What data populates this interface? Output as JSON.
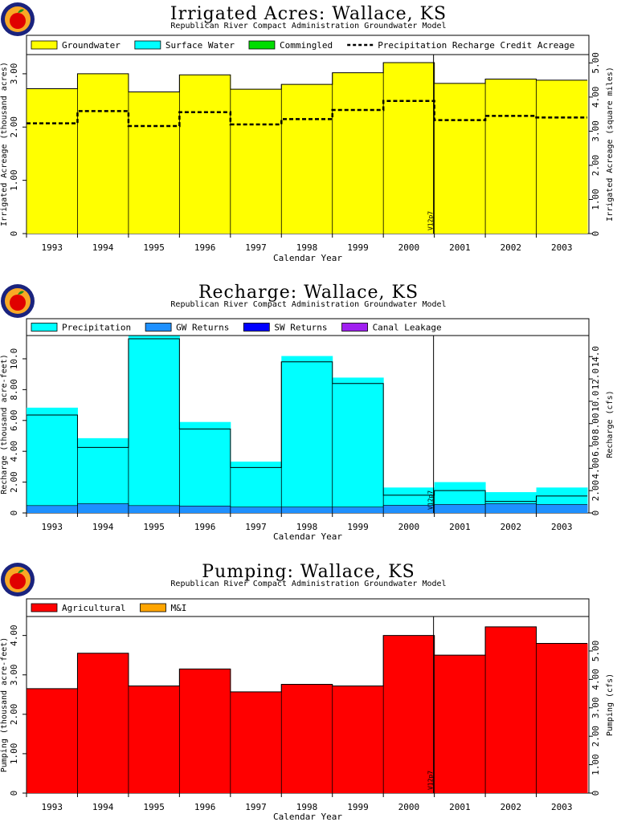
{
  "page": {
    "subtitle": "Republican River Compact Administration Groundwater Model"
  },
  "chart_data": [
    {
      "type": "area",
      "title": "Irrigated Acres: Wallace, KS",
      "subtitle": "Republican River Compact Administration Groundwater Model",
      "xlabel": "Calendar Year",
      "ylabel": "Irrigated Acreage (thousand acres)",
      "y2label": "Irrigated Acreage (square miles)",
      "categories": [
        "1993",
        "1994",
        "1995",
        "1996",
        "1997",
        "1998",
        "1999",
        "2000",
        "2001",
        "2002",
        "2003"
      ],
      "ylim": [
        0,
        3.3
      ],
      "yticks": [
        "0",
        "1.00",
        "2.00",
        "3.00"
      ],
      "y2lim": [
        0,
        5.15
      ],
      "y2ticks": [
        "0",
        "1.00",
        "2.00",
        "3.00",
        "4.00",
        "5.00"
      ],
      "series": [
        {
          "name": "Groundwater",
          "color": "#ffff00",
          "style": "fill",
          "values": [
            2.72,
            3.0,
            2.66,
            2.98,
            2.71,
            2.8,
            3.02,
            3.21,
            2.82,
            2.9,
            2.88
          ]
        },
        {
          "name": "Surface Water",
          "color": "#00ffff",
          "style": "fill",
          "values": [
            0,
            0,
            0,
            0,
            0,
            0,
            0,
            0,
            0,
            0,
            0
          ]
        },
        {
          "name": "Commingled",
          "color": "#00dd00",
          "style": "fill",
          "values": [
            0,
            0,
            0,
            0,
            0,
            0,
            0,
            0,
            0,
            0,
            0
          ]
        },
        {
          "name": "Precipitation Recharge Credit Acreage",
          "color": "#000000",
          "style": "dashed",
          "values": [
            2.07,
            2.3,
            2.02,
            2.28,
            2.05,
            2.15,
            2.32,
            2.49,
            2.13,
            2.21,
            2.18
          ]
        }
      ],
      "annotation": {
        "label": "V12p7",
        "x_index": 8
      },
      "grid": false,
      "legend": "top"
    },
    {
      "type": "area",
      "title": "Recharge: Wallace, KS",
      "subtitle": "Republican River Compact Administration Groundwater Model",
      "xlabel": "Calendar Year",
      "ylabel": "Recharge (thousand acre-feet)",
      "y2label": "Recharge (cfs)",
      "categories": [
        "1993",
        "1994",
        "1995",
        "1996",
        "1997",
        "1998",
        "1999",
        "2000",
        "2001",
        "2002",
        "2003"
      ],
      "ylim": [
        0,
        11.3
      ],
      "yticks": [
        "0",
        "2.00",
        "4.00",
        "6.00",
        "8.00",
        "10.0"
      ],
      "y2lim": [
        0,
        15.6
      ],
      "y2ticks": [
        "0",
        "2.00",
        "4.00",
        "6.00",
        "8.00",
        "10.0",
        "12.0",
        "14.0"
      ],
      "series": [
        {
          "name": "Precipitation",
          "color": "#00ffff",
          "style": "fill",
          "values": [
            6.35,
            4.25,
            11.3,
            5.45,
            2.95,
            9.8,
            8.4,
            1.15,
            1.45,
            0.75,
            1.1
          ]
        },
        {
          "name": "GW Returns",
          "color": "#1e90ff",
          "style": "fill",
          "values": [
            0.48,
            0.6,
            0.48,
            0.45,
            0.38,
            0.38,
            0.38,
            0.5,
            0.55,
            0.6,
            0.55
          ]
        },
        {
          "name": "SW Returns",
          "color": "#0000ff",
          "style": "fill",
          "values": [
            0,
            0,
            0,
            0,
            0,
            0,
            0,
            0,
            0,
            0,
            0
          ]
        },
        {
          "name": "Canal Leakage",
          "color": "#a020f0",
          "style": "fill",
          "values": [
            0,
            0,
            0,
            0,
            0,
            0,
            0,
            0,
            0,
            0,
            0
          ]
        }
      ],
      "annotation": {
        "label": "V12p7",
        "x_index": 8
      },
      "grid": false,
      "legend": "top"
    },
    {
      "type": "area",
      "title": "Pumping: Wallace, KS",
      "subtitle": "Republican River Compact Administration Groundwater Model",
      "xlabel": "Calendar Year",
      "ylabel": "Pumping (thousand acre-feet)",
      "y2label": "Pumping (cfs)",
      "categories": [
        "1993",
        "1994",
        "1995",
        "1996",
        "1997",
        "1998",
        "1999",
        "2000",
        "2001",
        "2002",
        "2003"
      ],
      "ylim": [
        0,
        4.4
      ],
      "yticks": [
        "0",
        "1.00",
        "2.00",
        "3.00",
        "4.00"
      ],
      "y2lim": [
        0,
        6.1
      ],
      "y2ticks": [
        "0",
        "1.00",
        "2.00",
        "3.00",
        "4.00",
        "5.00"
      ],
      "series": [
        {
          "name": "Agricultural",
          "color": "#ff0000",
          "style": "fill",
          "values": [
            2.65,
            3.55,
            2.72,
            3.15,
            2.57,
            2.76,
            2.72,
            4.0,
            3.5,
            4.22,
            3.8
          ]
        },
        {
          "name": "M&I",
          "color": "#ffa500",
          "style": "fill",
          "values": [
            0,
            0,
            0,
            0,
            0,
            0,
            0,
            0,
            0,
            0,
            0
          ]
        }
      ],
      "annotation": {
        "label": "V12p7",
        "x_index": 8
      },
      "grid": false,
      "legend": "top"
    }
  ]
}
